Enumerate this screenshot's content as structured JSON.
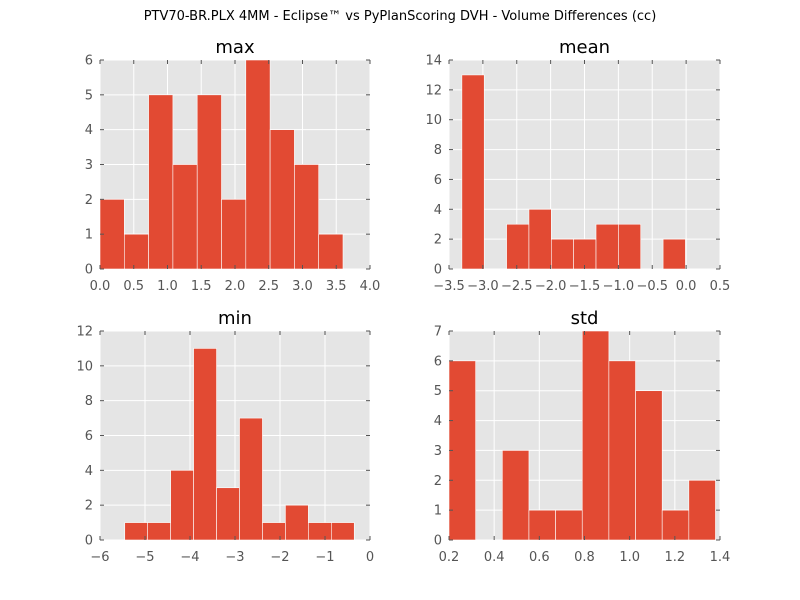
{
  "suptitle": "PTV70-BR.PLX 4MM - Eclipse™ vs PyPlanScoring DVH - Volume Differences (cc)",
  "colors": {
    "bar": "#E24A33",
    "axes_bg": "#E5E5E5",
    "grid": "#FFFFFF",
    "tick_label": "#555555"
  },
  "chart_data": [
    {
      "type": "bar",
      "title": "max",
      "xlabel": "",
      "ylabel": "",
      "xlim": [
        0.0,
        4.0
      ],
      "ylim": [
        0,
        6
      ],
      "xticks": [
        "0.0",
        "0.5",
        "1.0",
        "1.5",
        "2.0",
        "2.5",
        "3.0",
        "3.5",
        "4.0"
      ],
      "yticks": [
        "0",
        "1",
        "2",
        "3",
        "4",
        "5",
        "6"
      ],
      "bins": [
        {
          "x0": 0.0,
          "x1": 0.36,
          "value": 2
        },
        {
          "x0": 0.36,
          "x1": 0.72,
          "value": 1
        },
        {
          "x0": 0.72,
          "x1": 1.08,
          "value": 5
        },
        {
          "x0": 1.08,
          "x1": 1.44,
          "value": 3
        },
        {
          "x0": 1.44,
          "x1": 1.8,
          "value": 5
        },
        {
          "x0": 1.8,
          "x1": 2.16,
          "value": 2
        },
        {
          "x0": 2.16,
          "x1": 2.52,
          "value": 6
        },
        {
          "x0": 2.52,
          "x1": 2.88,
          "value": 4
        },
        {
          "x0": 2.88,
          "x1": 3.24,
          "value": 3
        },
        {
          "x0": 3.24,
          "x1": 3.6,
          "value": 1
        }
      ]
    },
    {
      "type": "bar",
      "title": "mean",
      "xlabel": "",
      "ylabel": "",
      "xlim": [
        -3.5,
        0.5
      ],
      "ylim": [
        0,
        14
      ],
      "xticks": [
        "−3.5",
        "−3.0",
        "−2.5",
        "−2.0",
        "−1.5",
        "−1.0",
        "−0.5",
        "0.0",
        "0.5"
      ],
      "yticks": [
        "0",
        "2",
        "4",
        "6",
        "8",
        "10",
        "12",
        "14"
      ],
      "bins": [
        {
          "x0": -3.31,
          "x1": -2.98,
          "value": 13
        },
        {
          "x0": -2.98,
          "x1": -2.65,
          "value": 0
        },
        {
          "x0": -2.65,
          "x1": -2.32,
          "value": 3
        },
        {
          "x0": -2.32,
          "x1": -1.99,
          "value": 4
        },
        {
          "x0": -1.99,
          "x1": -1.66,
          "value": 2
        },
        {
          "x0": -1.66,
          "x1": -1.33,
          "value": 2
        },
        {
          "x0": -1.33,
          "x1": -1.0,
          "value": 3
        },
        {
          "x0": -1.0,
          "x1": -0.67,
          "value": 3
        },
        {
          "x0": -0.67,
          "x1": -0.34,
          "value": 0
        },
        {
          "x0": -0.34,
          "x1": -0.01,
          "value": 2
        }
      ]
    },
    {
      "type": "bar",
      "title": "min",
      "xlabel": "",
      "ylabel": "",
      "xlim": [
        -6,
        0
      ],
      "ylim": [
        0,
        12
      ],
      "xticks": [
        "−6",
        "−5",
        "−4",
        "−3",
        "−2",
        "−1",
        "0"
      ],
      "yticks": [
        "0",
        "2",
        "4",
        "6",
        "8",
        "10",
        "12"
      ],
      "bins": [
        {
          "x0": -5.45,
          "x1": -4.94,
          "value": 1
        },
        {
          "x0": -4.94,
          "x1": -4.43,
          "value": 1
        },
        {
          "x0": -4.43,
          "x1": -3.92,
          "value": 4
        },
        {
          "x0": -3.92,
          "x1": -3.41,
          "value": 11
        },
        {
          "x0": -3.41,
          "x1": -2.9,
          "value": 3
        },
        {
          "x0": -2.9,
          "x1": -2.39,
          "value": 7
        },
        {
          "x0": -2.39,
          "x1": -1.88,
          "value": 1
        },
        {
          "x0": -1.88,
          "x1": -1.37,
          "value": 2
        },
        {
          "x0": -1.37,
          "x1": -0.86,
          "value": 1
        },
        {
          "x0": -0.86,
          "x1": -0.35,
          "value": 1
        }
      ]
    },
    {
      "type": "bar",
      "title": "std",
      "xlabel": "",
      "ylabel": "",
      "xlim": [
        0.2,
        1.4
      ],
      "ylim": [
        0,
        7
      ],
      "xticks": [
        "0.2",
        "0.4",
        "0.6",
        "0.8",
        "1.0",
        "1.2",
        "1.4"
      ],
      "yticks": [
        "0",
        "1",
        "2",
        "3",
        "4",
        "5",
        "6",
        "7"
      ],
      "bins": [
        {
          "x0": 0.2,
          "x1": 0.318,
          "value": 6
        },
        {
          "x0": 0.318,
          "x1": 0.436,
          "value": 0
        },
        {
          "x0": 0.436,
          "x1": 0.554,
          "value": 3
        },
        {
          "x0": 0.554,
          "x1": 0.672,
          "value": 1
        },
        {
          "x0": 0.672,
          "x1": 0.79,
          "value": 1
        },
        {
          "x0": 0.79,
          "x1": 0.908,
          "value": 7
        },
        {
          "x0": 0.908,
          "x1": 1.026,
          "value": 6
        },
        {
          "x0": 1.026,
          "x1": 1.144,
          "value": 5
        },
        {
          "x0": 1.144,
          "x1": 1.262,
          "value": 1
        },
        {
          "x0": 1.262,
          "x1": 1.38,
          "value": 2
        }
      ]
    }
  ]
}
